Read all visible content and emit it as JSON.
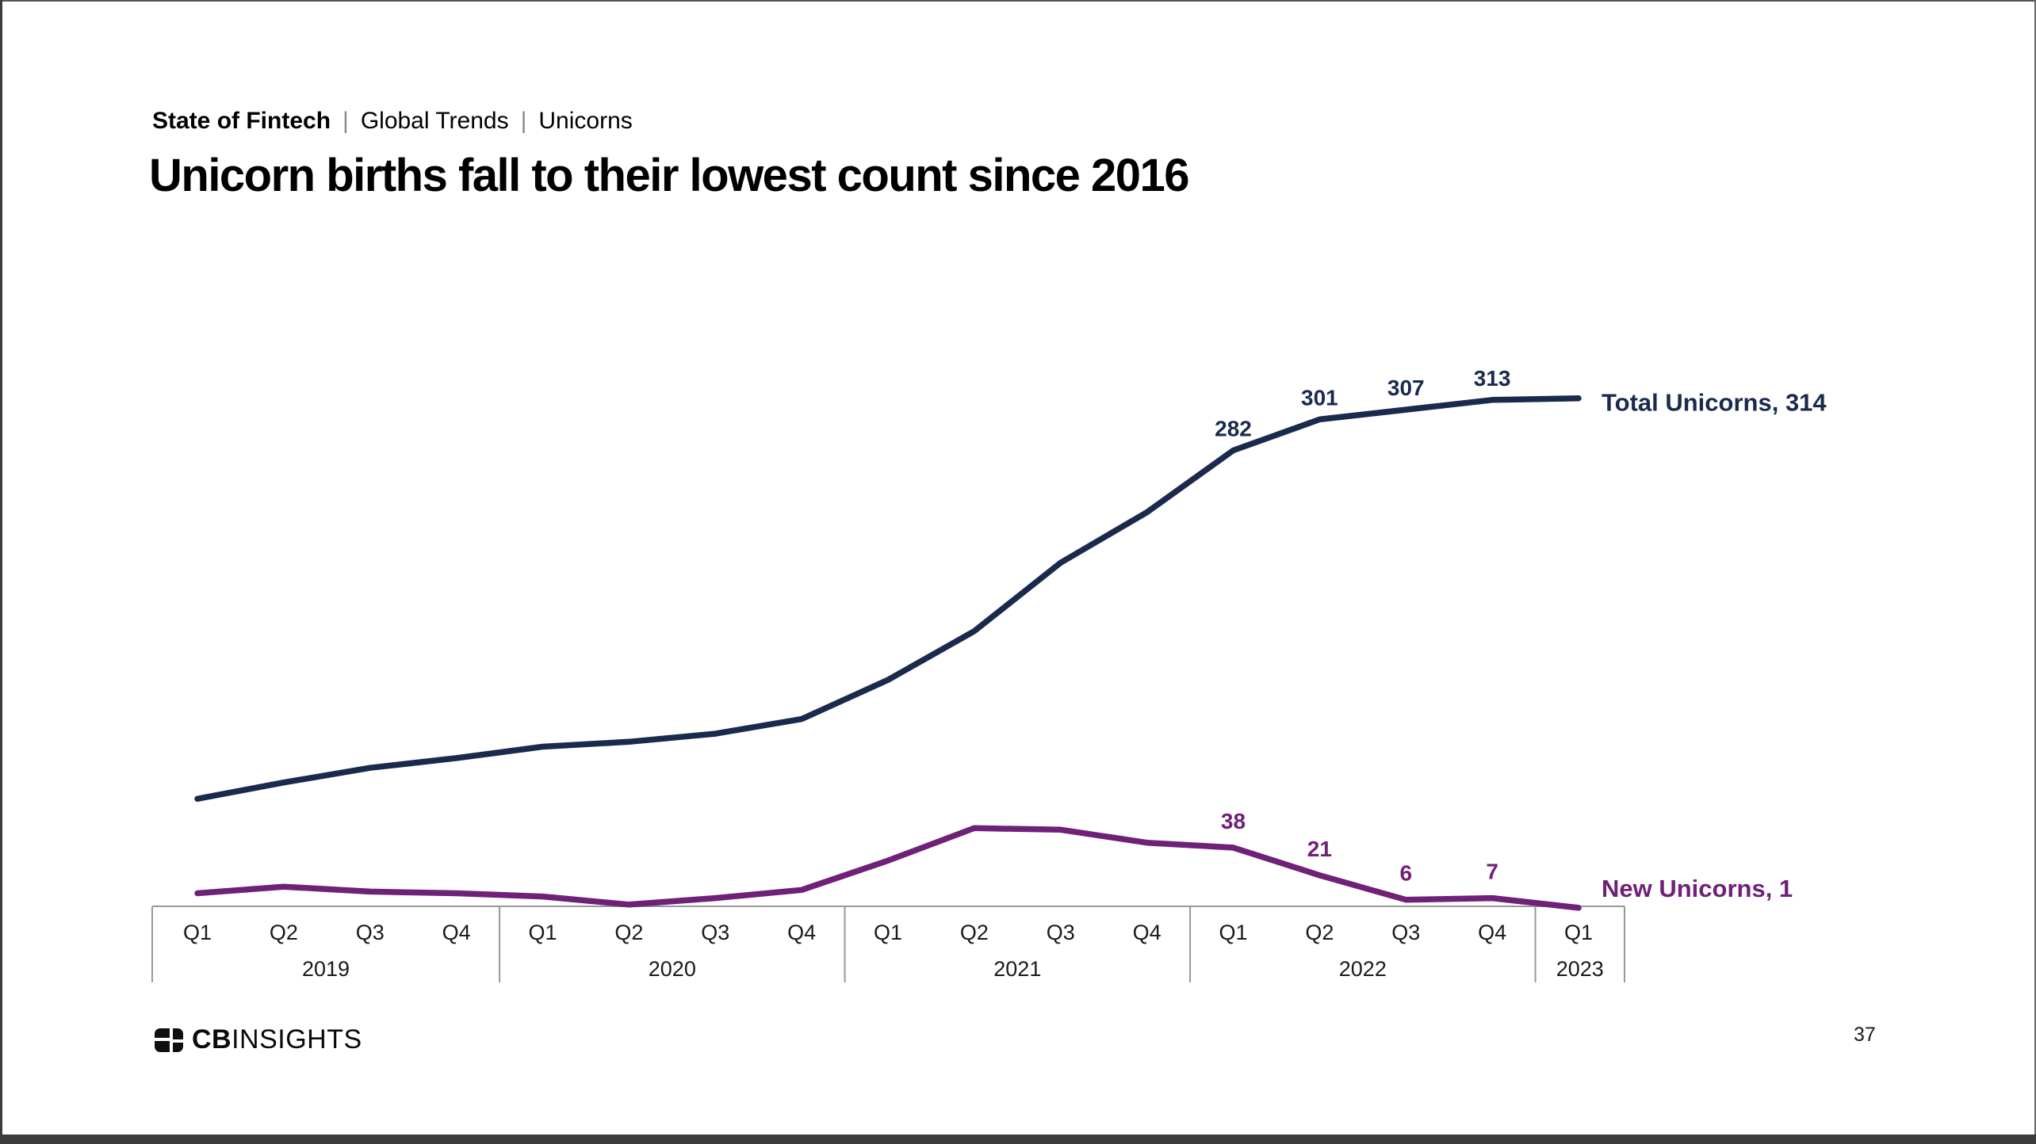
{
  "header": {
    "breadcrumb": [
      "State of Fintech",
      "Global Trends",
      "Unicorns"
    ],
    "separator": "|",
    "title": "Unicorn births fall to their lowest count since 2016"
  },
  "logo": {
    "cb": "CB",
    "insights": "INSIGHTS"
  },
  "page": {
    "number": "37"
  },
  "chart_data": {
    "type": "line",
    "title": "Unicorn births fall to their lowest count since 2016",
    "xlabel": "",
    "ylabel": "",
    "ylim": [
      0,
      330
    ],
    "grid": false,
    "legend_position": "right-of-line-end",
    "x_groups": [
      {
        "year": "2019",
        "quarters": [
          "Q1",
          "Q2",
          "Q3",
          "Q4"
        ]
      },
      {
        "year": "2020",
        "quarters": [
          "Q1",
          "Q2",
          "Q3",
          "Q4"
        ]
      },
      {
        "year": "2021",
        "quarters": [
          "Q1",
          "Q2",
          "Q3",
          "Q4"
        ]
      },
      {
        "year": "2022",
        "quarters": [
          "Q1",
          "Q2",
          "Q3",
          "Q4"
        ]
      },
      {
        "year": "2023",
        "quarters": [
          "Q1"
        ]
      }
    ],
    "series": [
      {
        "id": "total-unicorns",
        "name": "Total Unicorns",
        "color": "#1a2a4d",
        "end_label": "Total Unicorns, 314",
        "values": [
          68,
          78,
          87,
          93,
          100,
          103,
          108,
          117,
          141,
          171,
          213,
          244,
          282,
          301,
          307,
          313,
          314
        ],
        "point_labels": [
          {
            "index": 12,
            "text": "282"
          },
          {
            "index": 13,
            "text": "301"
          },
          {
            "index": 14,
            "text": "307"
          },
          {
            "index": 15,
            "text": "313"
          }
        ]
      },
      {
        "id": "new-unicorns",
        "name": "New Unicorns",
        "color": "#6f2077",
        "end_label": "New Unicorns, 1",
        "values": [
          10,
          14,
          11,
          10,
          8,
          3,
          7,
          12,
          30,
          50,
          49,
          41,
          38,
          21,
          6,
          7,
          1
        ],
        "point_labels": [
          {
            "index": 12,
            "text": "38"
          },
          {
            "index": 13,
            "text": "21"
          },
          {
            "index": 14,
            "text": "6"
          },
          {
            "index": 15,
            "text": "7"
          }
        ]
      }
    ]
  }
}
